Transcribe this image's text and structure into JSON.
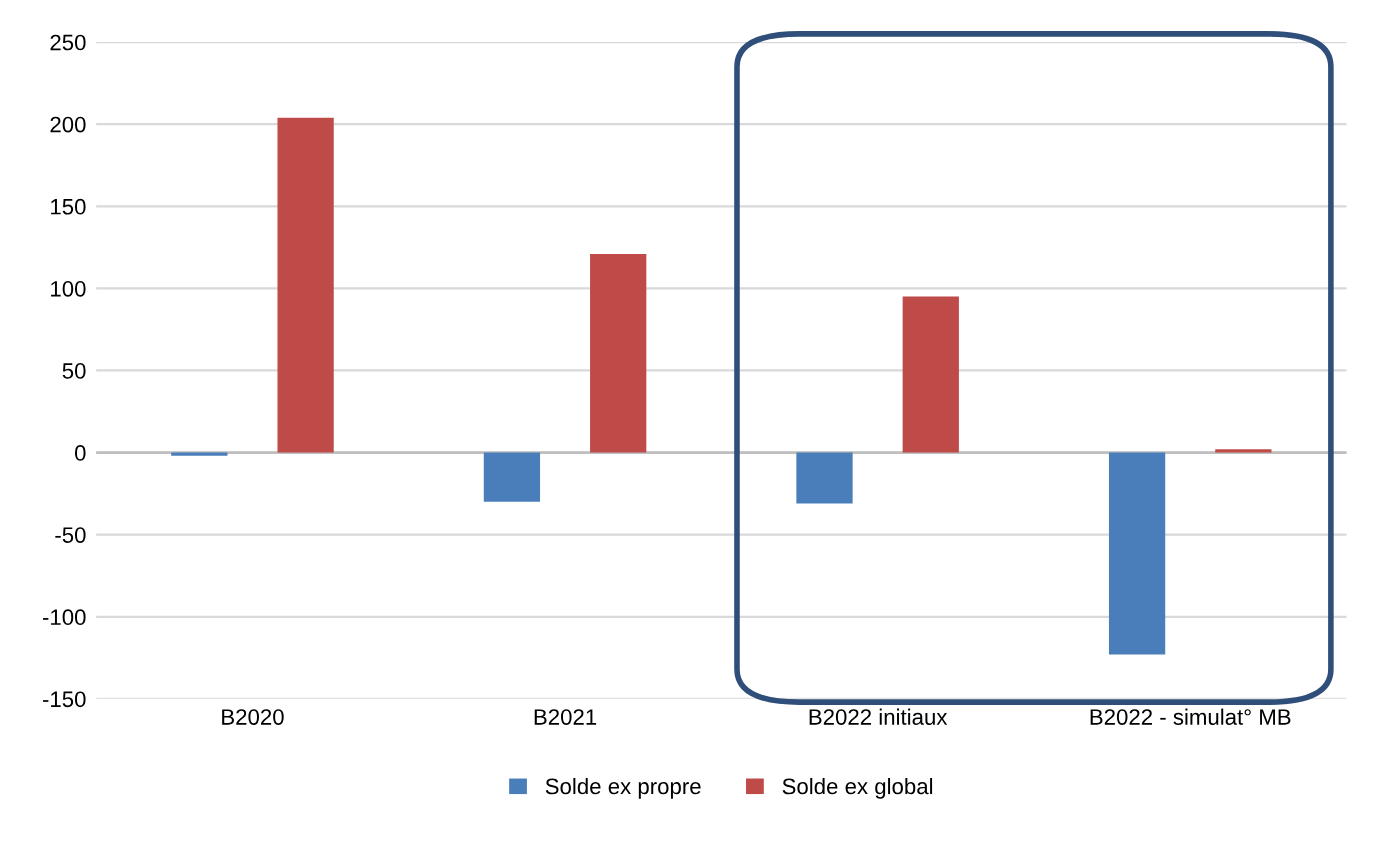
{
  "chart_data": {
    "type": "bar",
    "categories": [
      "B2020",
      "B2021",
      "B2022 initiaux",
      "B2022 - simulat° MB"
    ],
    "series": [
      {
        "name": "Solde ex propre",
        "color": "#4a7ebb",
        "values": [
          -2,
          -30,
          -31,
          -123
        ]
      },
      {
        "name": "Solde ex global",
        "color": "#be4b48",
        "values": [
          204,
          121,
          95,
          2
        ]
      }
    ],
    "ylim": [
      -150,
      250
    ],
    "yticks": [
      -150,
      -100,
      -50,
      0,
      50,
      100,
      150,
      200,
      250
    ],
    "grid": "y",
    "legend": "bottom"
  }
}
